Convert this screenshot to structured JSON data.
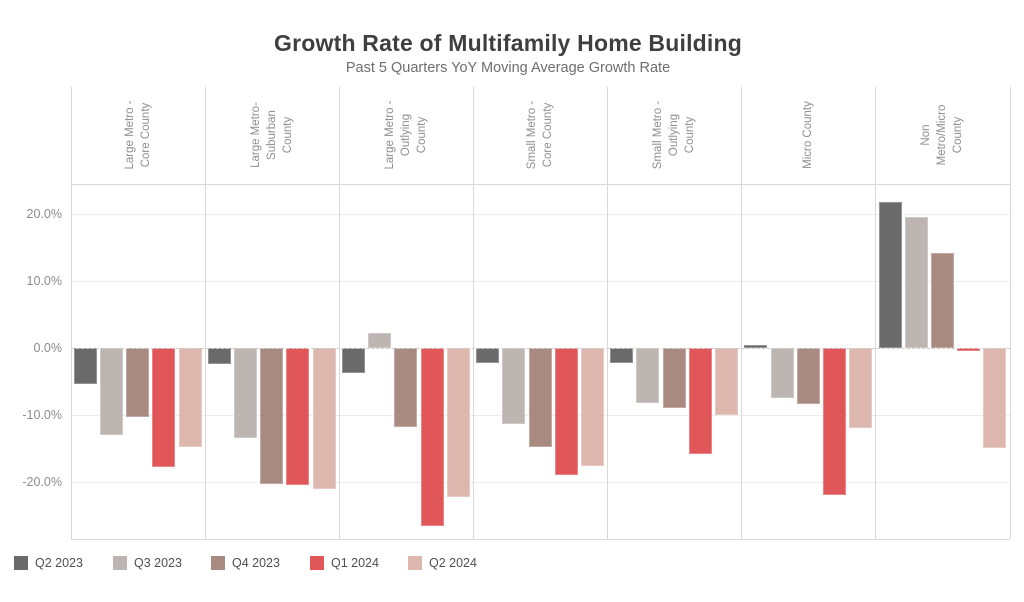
{
  "header": {
    "title": "Growth Rate of Multifamily Home Building",
    "subtitle": "Past 5 Quarters YoY Moving Average Growth Rate"
  },
  "chart_data": {
    "type": "bar",
    "title": "Growth Rate of Multifamily Home Building",
    "subtitle": "Past 5 Quarters YoY Moving Average Growth Rate",
    "categories": [
      "Large Metro -\nCore County",
      "Large Metro-\nSuburban\nCounty",
      "Large Metro -\nOutlying\nCounty",
      "Small Metro -\nCore County",
      "Small Metro -\nOutlying\nCounty",
      "Micro County",
      "Non\nMetro/Micro\nCounty"
    ],
    "series": [
      {
        "name": "Q2 2023",
        "color": "#6a6a6a",
        "values": [
          -5.4,
          -2.4,
          -3.7,
          -2.2,
          -2.3,
          0.5,
          21.8
        ]
      },
      {
        "name": "Q3 2023",
        "color": "#bcb5b1",
        "values": [
          -13.0,
          -13.4,
          2.2,
          -11.4,
          -8.2,
          -7.5,
          19.6
        ]
      },
      {
        "name": "Q4 2023",
        "color": "#a98a80",
        "values": [
          -10.3,
          -20.3,
          -11.8,
          -14.8,
          -9.0,
          -8.4,
          14.2
        ]
      },
      {
        "name": "Q1 2024",
        "color": "#e15759",
        "values": [
          -17.8,
          -20.4,
          -26.6,
          -19.0,
          -15.8,
          -21.9,
          -0.4
        ]
      },
      {
        "name": "Q2 2024",
        "color": "#ddb7ad",
        "values": [
          -14.8,
          -21.1,
          -22.2,
          -17.6,
          -10.0,
          -11.9,
          -14.9
        ]
      }
    ],
    "y_axis": {
      "tick_labels": [
        "20.0%",
        "10.0%",
        "0.0%",
        "-10.0%",
        "-20.0%"
      ],
      "tick_values": [
        20,
        10,
        0,
        -10,
        -20
      ],
      "range": [
        -28.5,
        24.6
      ]
    },
    "grid": true,
    "legend_position": "bottom",
    "zero_line_style": "dashed",
    "unit": "percent"
  }
}
